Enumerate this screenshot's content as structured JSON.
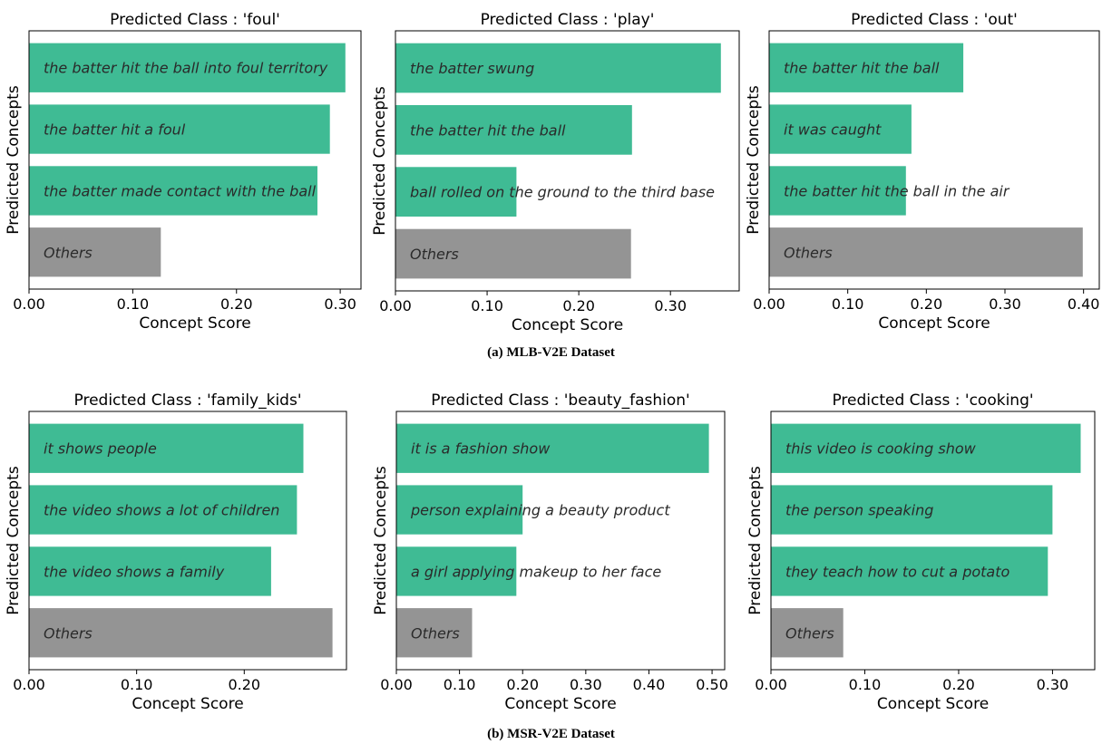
{
  "colors": {
    "concept_bar": "#3fbb94",
    "others_bar": "#949494",
    "axis": "#000000",
    "label_text": "#2a2a2a"
  },
  "captions": {
    "a": "(a) MLB-V2E Dataset",
    "b": "(b) MSR-V2E Dataset"
  },
  "chart_data": [
    {
      "type": "bar",
      "orientation": "horizontal",
      "title": "Predicted Class : 'foul'",
      "xlabel": "Concept Score",
      "ylabel": "Predicted Concepts",
      "xlim": [
        0,
        0.32
      ],
      "xticks": [
        0.0,
        0.1,
        0.2,
        0.3
      ],
      "xtick_labels": [
        "0.00",
        "0.10",
        "0.20",
        "0.30"
      ],
      "categories": [
        "the batter hit the ball into foul territory",
        "the batter hit a foul",
        "the batter made contact with the ball",
        "Others"
      ],
      "values": [
        0.305,
        0.29,
        0.278,
        0.127
      ]
    },
    {
      "type": "bar",
      "orientation": "horizontal",
      "title": "Predicted Class : 'play'",
      "xlabel": "Concept Score",
      "ylabel": "Predicted Concepts",
      "xlim": [
        0,
        0.375
      ],
      "xticks": [
        0.0,
        0.1,
        0.2,
        0.3
      ],
      "xtick_labels": [
        "0.00",
        "0.10",
        "0.20",
        "0.30"
      ],
      "categories": [
        "the batter swung",
        "the batter hit the ball",
        "ball rolled on the ground to the third base",
        "Others"
      ],
      "values": [
        0.355,
        0.258,
        0.132,
        0.257
      ]
    },
    {
      "type": "bar",
      "orientation": "horizontal",
      "title": "Predicted Class : 'out'",
      "xlabel": "Concept Score",
      "ylabel": "Predicted Concepts",
      "xlim": [
        0,
        0.42
      ],
      "xticks": [
        0.0,
        0.1,
        0.2,
        0.3,
        0.4
      ],
      "xtick_labels": [
        "0.00",
        "0.10",
        "0.20",
        "0.30",
        "0.40"
      ],
      "categories": [
        "the batter hit the ball",
        "it was caught",
        "the batter hit the ball in the air",
        "Others"
      ],
      "values": [
        0.247,
        0.181,
        0.174,
        0.399
      ]
    },
    {
      "type": "bar",
      "orientation": "horizontal",
      "title": "Predicted Class : 'family_kids'",
      "xlabel": "Concept Score",
      "ylabel": "Predicted Concepts",
      "xlim": [
        0,
        0.295
      ],
      "xticks": [
        0.0,
        0.1,
        0.2
      ],
      "xtick_labels": [
        "0.00",
        "0.10",
        "0.20"
      ],
      "categories": [
        "it shows people",
        "the video shows a lot of children",
        "the video shows a family",
        "Others"
      ],
      "values": [
        0.255,
        0.249,
        0.225,
        0.282
      ]
    },
    {
      "type": "bar",
      "orientation": "horizontal",
      "title": "Predicted Class : 'beauty_fashion'",
      "xlabel": "Concept Score",
      "ylabel": "Predicted Concepts",
      "xlim": [
        0,
        0.52
      ],
      "xticks": [
        0.0,
        0.1,
        0.2,
        0.3,
        0.4,
        0.5
      ],
      "xtick_labels": [
        "0.00",
        "0.10",
        "0.20",
        "0.30",
        "0.40",
        "0.50"
      ],
      "categories": [
        "it is a fashion show",
        "person explaining a beauty product",
        "a girl applying makeup to her face",
        "Others"
      ],
      "values": [
        0.495,
        0.2,
        0.19,
        0.12
      ]
    },
    {
      "type": "bar",
      "orientation": "horizontal",
      "title": "Predicted Class : 'cooking'",
      "xlabel": "Concept Score",
      "ylabel": "Predicted Concepts",
      "xlim": [
        0,
        0.345
      ],
      "xticks": [
        0.0,
        0.1,
        0.2,
        0.3
      ],
      "xtick_labels": [
        "0.00",
        "0.10",
        "0.20",
        "0.30"
      ],
      "categories": [
        "this video is cooking show",
        "the person speaking",
        "they teach how to cut a potato",
        "Others"
      ],
      "values": [
        0.33,
        0.3,
        0.295,
        0.077
      ]
    }
  ]
}
